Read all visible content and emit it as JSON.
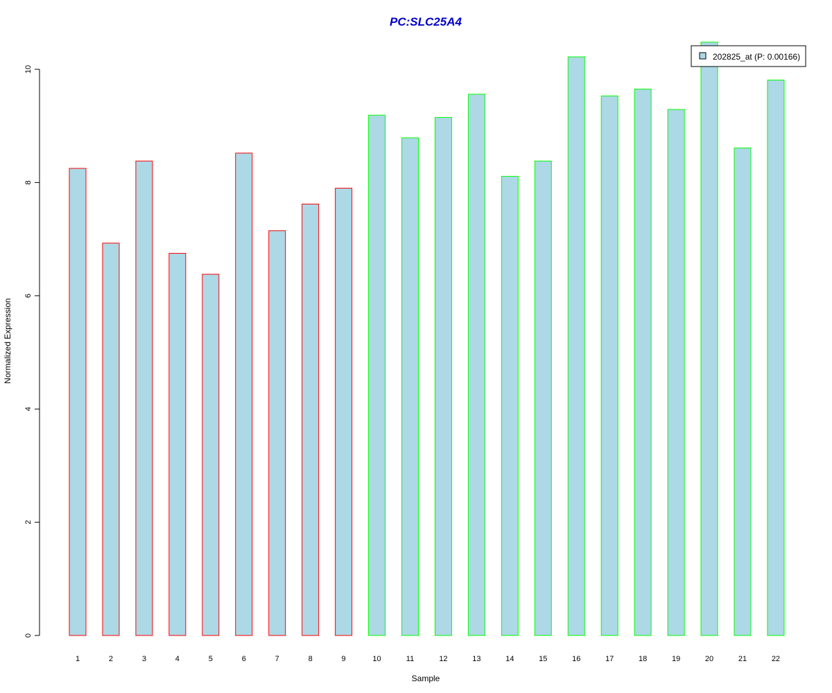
{
  "chart_data": {
    "type": "bar",
    "title": "PC:SLC25A4",
    "xlabel": "Sample",
    "ylabel": "Normalized Expression",
    "ylim": [
      0,
      10.5
    ],
    "yticks": [
      0,
      2,
      4,
      6,
      8,
      10
    ],
    "grid": false,
    "legend_position": "top-right",
    "categories": [
      "1",
      "2",
      "3",
      "4",
      "5",
      "6",
      "7",
      "8",
      "9",
      "10",
      "11",
      "12",
      "13",
      "14",
      "15",
      "16",
      "17",
      "18",
      "19",
      "20",
      "21",
      "22"
    ],
    "series": [
      {
        "name": "202825_at (P: 0.00166)",
        "values": [
          8.25,
          6.93,
          8.38,
          6.75,
          6.38,
          8.52,
          7.15,
          7.62,
          7.9,
          9.19,
          8.79,
          9.15,
          9.56,
          8.11,
          8.38,
          10.22,
          9.53,
          9.65,
          9.29,
          10.48,
          8.61,
          9.81
        ],
        "group": [
          "a",
          "a",
          "a",
          "a",
          "a",
          "a",
          "a",
          "a",
          "a",
          "b",
          "b",
          "b",
          "b",
          "b",
          "b",
          "b",
          "b",
          "b",
          "b",
          "b",
          "b",
          "b"
        ]
      }
    ],
    "colors": {
      "bar_fill": "#add8e6",
      "group_a_border": "#ff0000",
      "group_b_border": "#00ff00",
      "title": "#0000cd",
      "axis": "#000000"
    }
  }
}
